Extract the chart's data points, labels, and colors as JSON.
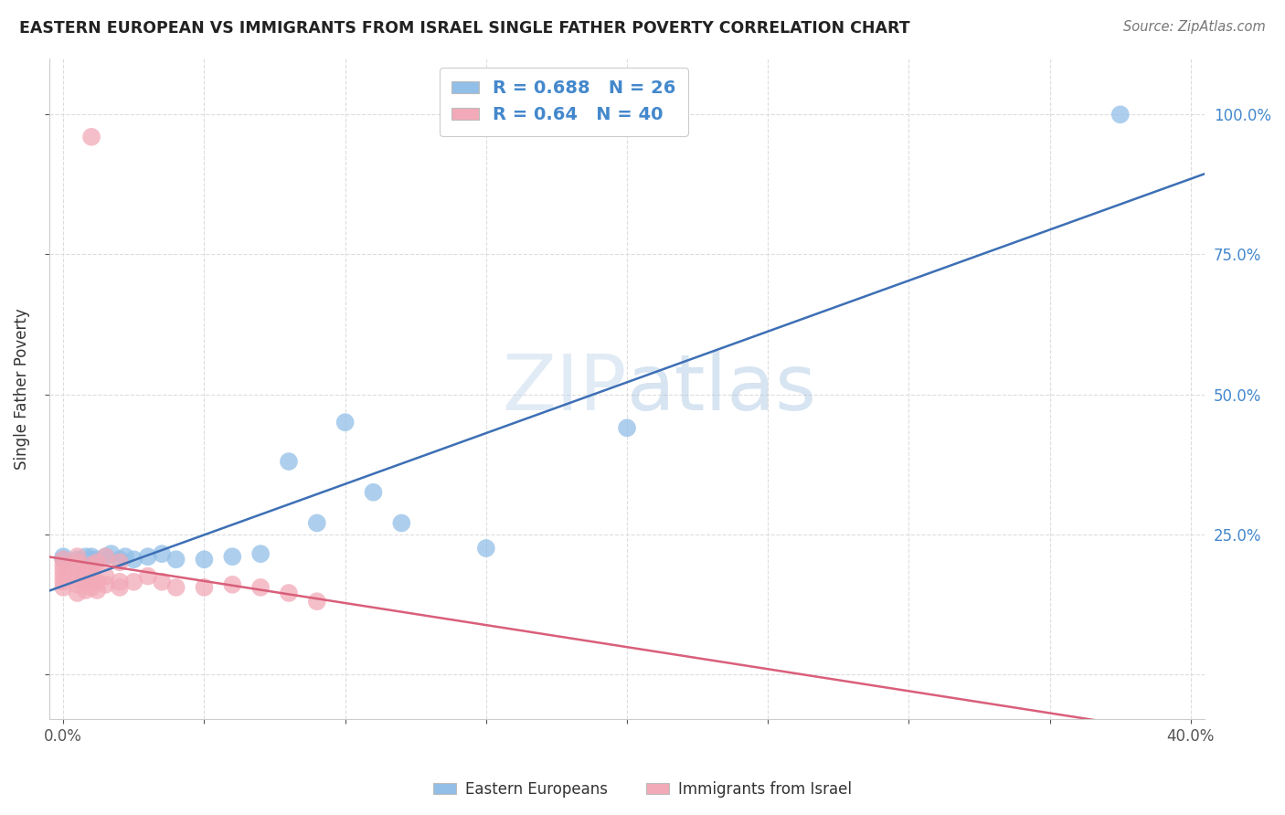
{
  "title": "EASTERN EUROPEAN VS IMMIGRANTS FROM ISRAEL SINGLE FATHER POVERTY CORRELATION CHART",
  "source": "Source: ZipAtlas.com",
  "ylabel": "Single Father Poverty",
  "blue_R": 0.688,
  "blue_N": 26,
  "pink_R": 0.64,
  "pink_N": 40,
  "blue_color": "#92bfe8",
  "pink_color": "#f2aab8",
  "blue_line_color": "#3d6fb5",
  "pink_line_color": "#d95f7a",
  "legend_blue_label": "Eastern Europeans",
  "legend_pink_label": "Immigrants from Israel",
  "blue_x": [
    0.0,
    0.0,
    0.005,
    0.008,
    0.01,
    0.01,
    0.012,
    0.015,
    0.017,
    0.02,
    0.022,
    0.025,
    0.03,
    0.035,
    0.04,
    0.05,
    0.06,
    0.07,
    0.08,
    0.09,
    0.1,
    0.11,
    0.12,
    0.15,
    0.2,
    0.375
  ],
  "blue_y": [
    0.205,
    0.21,
    0.205,
    0.21,
    0.205,
    0.21,
    0.205,
    0.21,
    0.215,
    0.205,
    0.21,
    0.205,
    0.21,
    0.215,
    0.205,
    0.205,
    0.21,
    0.215,
    0.38,
    0.27,
    0.45,
    0.325,
    0.27,
    0.225,
    0.44,
    1.0
  ],
  "pink_x": [
    0.0,
    0.0,
    0.0,
    0.0,
    0.0,
    0.0,
    0.005,
    0.005,
    0.005,
    0.005,
    0.005,
    0.005,
    0.005,
    0.008,
    0.008,
    0.008,
    0.01,
    0.01,
    0.01,
    0.01,
    0.01,
    0.01,
    0.012,
    0.012,
    0.012,
    0.015,
    0.015,
    0.015,
    0.02,
    0.02,
    0.02,
    0.025,
    0.03,
    0.035,
    0.04,
    0.05,
    0.06,
    0.07,
    0.08,
    0.09
  ],
  "pink_y": [
    0.155,
    0.165,
    0.175,
    0.185,
    0.195,
    0.205,
    0.145,
    0.16,
    0.17,
    0.18,
    0.19,
    0.2,
    0.21,
    0.15,
    0.165,
    0.175,
    0.155,
    0.165,
    0.175,
    0.185,
    0.195,
    0.96,
    0.15,
    0.165,
    0.2,
    0.16,
    0.175,
    0.21,
    0.155,
    0.165,
    0.2,
    0.165,
    0.175,
    0.165,
    0.155,
    0.155,
    0.16,
    0.155,
    0.145,
    0.13
  ],
  "xlim": [
    -0.005,
    0.405
  ],
  "ylim": [
    -0.08,
    1.1
  ],
  "xticks": [
    0.0,
    0.05,
    0.1,
    0.15,
    0.2,
    0.25,
    0.3,
    0.35,
    0.4
  ],
  "yticks": [
    0.0,
    0.25,
    0.5,
    0.75,
    1.0
  ],
  "watermark_zip": "ZIP",
  "watermark_atlas": "atlas"
}
